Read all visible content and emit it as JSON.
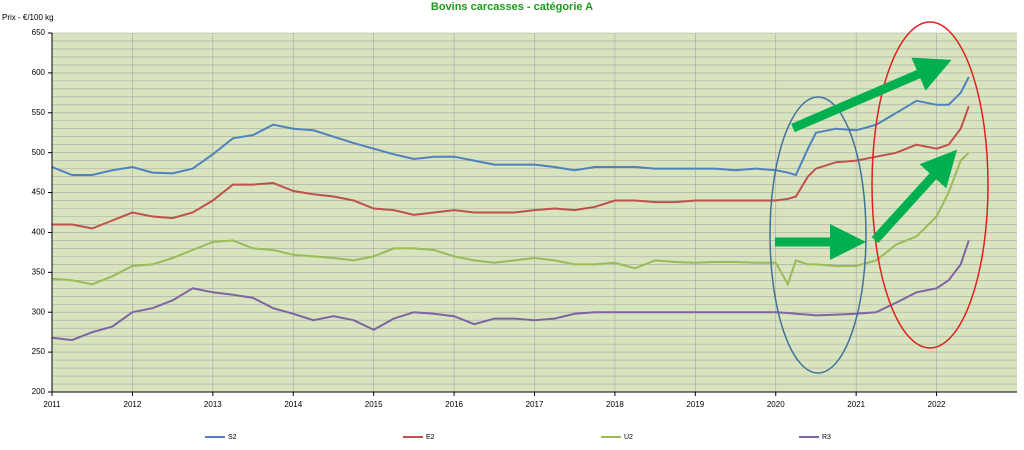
{
  "chart_data": {
    "type": "line",
    "title": "Bovins carcasses - catégorie A",
    "y_label": "Prix - €/100 kg",
    "x": [
      2011,
      2011.25,
      2011.5,
      2011.75,
      2012,
      2012.25,
      2012.5,
      2012.75,
      2013,
      2013.25,
      2013.5,
      2013.75,
      2014,
      2014.25,
      2014.5,
      2014.75,
      2015,
      2015.25,
      2015.5,
      2015.75,
      2016,
      2016.25,
      2016.5,
      2016.75,
      2017,
      2017.25,
      2017.5,
      2017.75,
      2018,
      2018.25,
      2018.5,
      2018.75,
      2019,
      2019.25,
      2019.5,
      2019.75,
      2020,
      2020.15,
      2020.25,
      2020.4,
      2020.5,
      2020.75,
      2021,
      2021.25,
      2021.5,
      2021.75,
      2022,
      2022.15,
      2022.3,
      2022.4
    ],
    "series": [
      {
        "name": "S2",
        "color": "#4f81bd",
        "values": [
          482,
          472,
          472,
          478,
          482,
          475,
          474,
          480,
          498,
          518,
          522,
          535,
          530,
          528,
          520,
          512,
          505,
          498,
          492,
          495,
          495,
          490,
          485,
          485,
          485,
          482,
          478,
          482,
          482,
          482,
          480,
          480,
          480,
          480,
          478,
          480,
          478,
          475,
          472,
          505,
          525,
          530,
          528,
          535,
          550,
          565,
          560,
          560,
          575,
          595
        ]
      },
      {
        "name": "E2",
        "color": "#c0504d",
        "values": [
          410,
          410,
          405,
          415,
          425,
          420,
          418,
          425,
          440,
          460,
          460,
          462,
          452,
          448,
          445,
          440,
          430,
          428,
          422,
          425,
          428,
          425,
          425,
          425,
          428,
          430,
          428,
          432,
          440,
          440,
          438,
          438,
          440,
          440,
          440,
          440,
          440,
          442,
          445,
          470,
          480,
          488,
          490,
          495,
          500,
          510,
          505,
          510,
          530,
          558
        ]
      },
      {
        "name": "U2",
        "color": "#9bbb59",
        "values": [
          342,
          340,
          335,
          345,
          358,
          360,
          368,
          378,
          388,
          390,
          380,
          378,
          372,
          370,
          368,
          365,
          370,
          380,
          380,
          378,
          370,
          365,
          362,
          365,
          368,
          365,
          360,
          360,
          362,
          355,
          365,
          363,
          362,
          363,
          363,
          362,
          362,
          335,
          365,
          360,
          360,
          358,
          358,
          365,
          385,
          395,
          420,
          450,
          490,
          500
        ]
      },
      {
        "name": "R3",
        "color": "#8064a2",
        "values": [
          268,
          265,
          275,
          282,
          300,
          305,
          315,
          330,
          325,
          322,
          318,
          305,
          298,
          290,
          295,
          290,
          278,
          292,
          300,
          298,
          295,
          285,
          292,
          292,
          290,
          292,
          298,
          300,
          300,
          300,
          300,
          300,
          300,
          300,
          300,
          300,
          300,
          299,
          298,
          297,
          296,
          297,
          298,
          300,
          312,
          325,
          330,
          340,
          360,
          390
        ]
      }
    ],
    "xlim": [
      2011,
      2023
    ],
    "xticks": [
      2011,
      2012,
      2013,
      2014,
      2015,
      2016,
      2017,
      2018,
      2019,
      2020,
      2021,
      2022
    ],
    "ylim": [
      200,
      650
    ],
    "yticks": [
      200,
      250,
      300,
      350,
      400,
      450,
      500,
      550,
      600,
      650
    ],
    "ygrid": [
      200,
      210,
      220,
      230,
      240,
      250,
      260,
      270,
      280,
      290,
      300,
      310,
      320,
      330,
      340,
      350,
      360,
      370,
      380,
      390,
      400,
      410,
      420,
      430,
      440,
      450,
      460,
      470,
      480,
      490,
      500,
      510,
      520,
      530,
      540,
      550,
      560,
      570,
      580,
      590,
      600,
      610,
      620,
      630,
      640,
      650
    ],
    "grid": true,
    "legend": "bottom"
  }
}
